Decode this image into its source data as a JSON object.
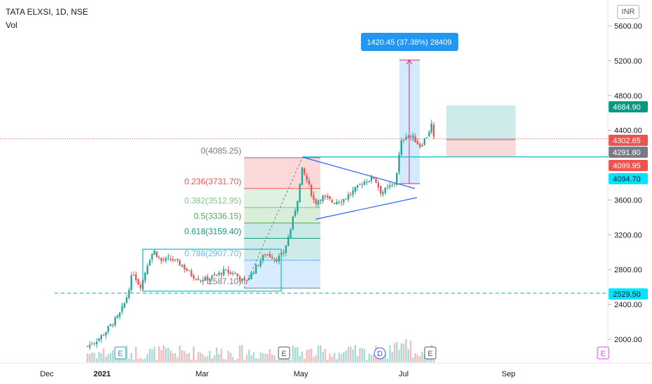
{
  "header": {
    "symbol_line": "TATA ELXSI, 1D, NSE",
    "vol_label": "Vol",
    "currency": "INR"
  },
  "colors": {
    "up": "#26a69a",
    "down": "#ef5350",
    "cyan": "#00bcd4",
    "blue_line": "#2962ff",
    "price_line": "#ef5350"
  },
  "chart_data": {
    "type": "candlestick",
    "y_axis_ticks": [
      "5600.00",
      "5200.00",
      "4800.00",
      "4400.00",
      "3600.00",
      "3200.00",
      "2800.00",
      "2400.00",
      "2000.00"
    ],
    "x_axis_ticks": [
      "Dec",
      "2021",
      "Mar",
      "May",
      "Jul",
      "Sep"
    ],
    "price_labels": {
      "tp": "4684.90",
      "last": "4302.65",
      "entry": "4291.80",
      "stop": "4099.95",
      "hline": "4094.70",
      "support": "2529.50"
    },
    "measure_label": "1420.45 (37.38%) 28409",
    "fib_levels": [
      {
        "label": "0(4085.25)",
        "value": 4085.25
      },
      {
        "label": "0.236(3731.70)",
        "value": 3731.7
      },
      {
        "label": "0.382(3512.95)",
        "value": 3512.95
      },
      {
        "label": "0.5(3336.15)",
        "value": 3336.15
      },
      {
        "label": "0.618(3159.40)",
        "value": 3159.4
      },
      {
        "label": "0.786(2907.70)",
        "value": 2907.7
      },
      {
        "label": "2587.10)",
        "value": 2587.1
      }
    ],
    "events": [
      "E",
      "E",
      "D",
      "E",
      "E"
    ]
  }
}
